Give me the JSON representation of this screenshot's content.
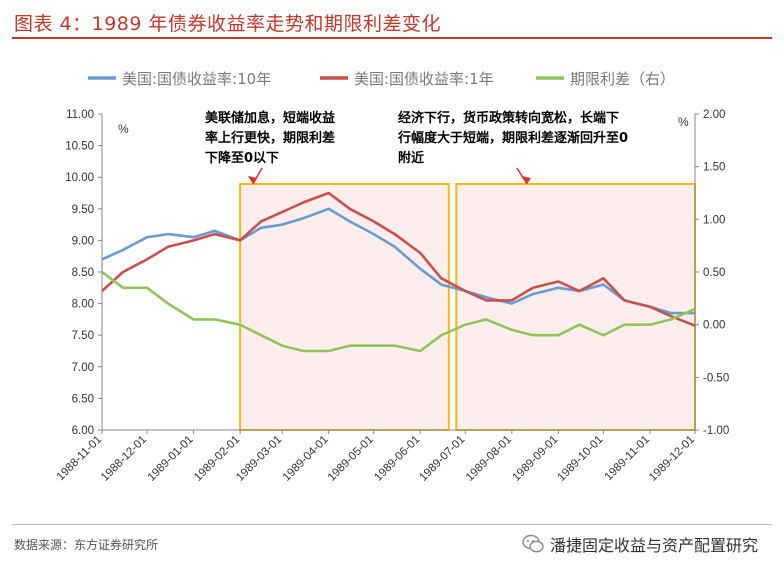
{
  "header": {
    "title": "图表 4：1989 年债券收益率走势和期限利差变化"
  },
  "footer": {
    "source": "数据来源：东方证券研究所",
    "brand": "潘捷固定收益与资产配置研究"
  },
  "colors": {
    "title": "#c0392b",
    "series_10y": "#6b9bd1",
    "series_1y": "#c9504c",
    "series_spread": "#92c45a",
    "highlight_border": "#f2b822",
    "highlight_fill": "#fbeeec"
  },
  "chart_data": {
    "type": "line",
    "x_ticks": [
      "1988-11-01",
      "1988-12-01",
      "1989-01-01",
      "1989-02-01",
      "1989-03-01",
      "1989-04-01",
      "1989-05-01",
      "1989-06-01",
      "1989-07-01",
      "1989-08-01",
      "1989-09-01",
      "1989-10-01",
      "1989-11-01",
      "1989-12-01"
    ],
    "y_left": {
      "unit": "%",
      "min": 6.0,
      "max": 11.0,
      "ticks": [
        "11.00",
        "10.50",
        "10.00",
        "9.50",
        "9.00",
        "8.50",
        "8.00",
        "7.50",
        "7.00",
        "6.50",
        "6.00"
      ]
    },
    "y_right": {
      "unit": "%",
      "min": -1.0,
      "max": 2.0,
      "ticks": [
        "2.00",
        "1.50",
        "1.00",
        "0.50",
        "0.00",
        "-0.50",
        "-1.00"
      ]
    },
    "legend": [
      "美国:国债收益率:10年",
      "美国:国债收益率:1年",
      "期限利差（右）"
    ],
    "series": [
      {
        "name": "美国:国债收益率:10年",
        "axis": "left",
        "color": "#6b9bd1",
        "points": [
          [
            "1988-11-01",
            8.7
          ],
          [
            "1988-11-15",
            8.85
          ],
          [
            "1988-12-01",
            9.05
          ],
          [
            "1988-12-15",
            9.1
          ],
          [
            "1989-01-01",
            9.05
          ],
          [
            "1989-01-15",
            9.15
          ],
          [
            "1989-02-01",
            9.0
          ],
          [
            "1989-02-15",
            9.2
          ],
          [
            "1989-03-01",
            9.25
          ],
          [
            "1989-03-15",
            9.35
          ],
          [
            "1989-04-01",
            9.5
          ],
          [
            "1989-04-15",
            9.3
          ],
          [
            "1989-05-01",
            9.1
          ],
          [
            "1989-05-15",
            8.9
          ],
          [
            "1989-06-01",
            8.55
          ],
          [
            "1989-06-15",
            8.3
          ],
          [
            "1989-07-01",
            8.2
          ],
          [
            "1989-07-15",
            8.1
          ],
          [
            "1989-08-01",
            8.0
          ],
          [
            "1989-08-15",
            8.15
          ],
          [
            "1989-09-01",
            8.25
          ],
          [
            "1989-09-15",
            8.2
          ],
          [
            "1989-10-01",
            8.3
          ],
          [
            "1989-10-15",
            8.05
          ],
          [
            "1989-11-01",
            7.95
          ],
          [
            "1989-11-15",
            7.85
          ],
          [
            "1989-12-01",
            7.85
          ]
        ]
      },
      {
        "name": "美国:国债收益率:1年",
        "axis": "left",
        "color": "#c9504c",
        "points": [
          [
            "1988-11-01",
            8.2
          ],
          [
            "1988-11-15",
            8.5
          ],
          [
            "1988-12-01",
            8.7
          ],
          [
            "1988-12-15",
            8.9
          ],
          [
            "1989-01-01",
            9.0
          ],
          [
            "1989-01-15",
            9.1
          ],
          [
            "1989-02-01",
            9.0
          ],
          [
            "1989-02-15",
            9.3
          ],
          [
            "1989-03-01",
            9.45
          ],
          [
            "1989-03-15",
            9.6
          ],
          [
            "1989-04-01",
            9.75
          ],
          [
            "1989-04-15",
            9.5
          ],
          [
            "1989-05-01",
            9.3
          ],
          [
            "1989-05-15",
            9.1
          ],
          [
            "1989-06-01",
            8.8
          ],
          [
            "1989-06-15",
            8.4
          ],
          [
            "1989-07-01",
            8.2
          ],
          [
            "1989-07-15",
            8.05
          ],
          [
            "1989-08-01",
            8.05
          ],
          [
            "1989-08-15",
            8.25
          ],
          [
            "1989-09-01",
            8.35
          ],
          [
            "1989-09-15",
            8.2
          ],
          [
            "1989-10-01",
            8.4
          ],
          [
            "1989-10-15",
            8.05
          ],
          [
            "1989-11-01",
            7.95
          ],
          [
            "1989-11-15",
            7.8
          ],
          [
            "1989-12-01",
            7.65
          ]
        ]
      },
      {
        "name": "期限利差（右）",
        "axis": "right",
        "color": "#92c45a",
        "points": [
          [
            "1988-11-01",
            0.5
          ],
          [
            "1988-11-15",
            0.35
          ],
          [
            "1988-12-01",
            0.35
          ],
          [
            "1988-12-15",
            0.2
          ],
          [
            "1989-01-01",
            0.05
          ],
          [
            "1989-01-15",
            0.05
          ],
          [
            "1989-02-01",
            0.0
          ],
          [
            "1989-02-15",
            -0.1
          ],
          [
            "1989-03-01",
            -0.2
          ],
          [
            "1989-03-15",
            -0.25
          ],
          [
            "1989-04-01",
            -0.25
          ],
          [
            "1989-04-15",
            -0.2
          ],
          [
            "1989-05-01",
            -0.2
          ],
          [
            "1989-05-15",
            -0.2
          ],
          [
            "1989-06-01",
            -0.25
          ],
          [
            "1989-06-15",
            -0.1
          ],
          [
            "1989-07-01",
            0.0
          ],
          [
            "1989-07-15",
            0.05
          ],
          [
            "1989-08-01",
            -0.05
          ],
          [
            "1989-08-15",
            -0.1
          ],
          [
            "1989-09-01",
            -0.1
          ],
          [
            "1989-09-15",
            0.0
          ],
          [
            "1989-10-01",
            -0.1
          ],
          [
            "1989-10-15",
            0.0
          ],
          [
            "1989-11-01",
            0.0
          ],
          [
            "1989-11-15",
            0.05
          ],
          [
            "1989-12-01",
            0.15
          ]
        ]
      }
    ],
    "highlight_regions": [
      {
        "from": "1989-02-01",
        "to": "1989-06-20",
        "annotation": [
          "美联储加息，短端收益",
          "率上行更快，期限利差",
          "下降至0以下"
        ]
      },
      {
        "from": "1989-06-25",
        "to": "1989-12-01",
        "annotation": [
          "经济下行，货币政策转向宽松，长端下",
          "行幅度大于短端，期限利差逐渐回升至0",
          "附近"
        ]
      }
    ]
  }
}
